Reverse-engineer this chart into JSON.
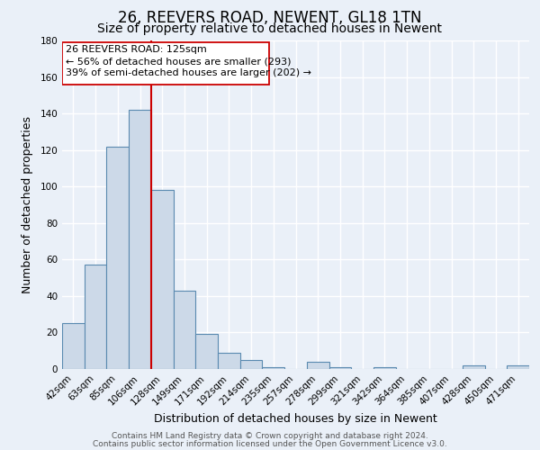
{
  "title": "26, REEVERS ROAD, NEWENT, GL18 1TN",
  "subtitle": "Size of property relative to detached houses in Newent",
  "xlabel": "Distribution of detached houses by size in Newent",
  "ylabel": "Number of detached properties",
  "bin_labels": [
    "42sqm",
    "63sqm",
    "85sqm",
    "106sqm",
    "128sqm",
    "149sqm",
    "171sqm",
    "192sqm",
    "214sqm",
    "235sqm",
    "257sqm",
    "278sqm",
    "299sqm",
    "321sqm",
    "342sqm",
    "364sqm",
    "385sqm",
    "407sqm",
    "428sqm",
    "450sqm",
    "471sqm"
  ],
  "bin_values": [
    25,
    57,
    122,
    142,
    98,
    43,
    19,
    9,
    5,
    1,
    0,
    4,
    1,
    0,
    1,
    0,
    0,
    0,
    2,
    0,
    2
  ],
  "bar_color": "#ccd9e8",
  "bar_edge_color": "#5a8ab0",
  "property_line_idx": 4,
  "property_line_color": "#cc0000",
  "annotation_title": "26 REEVERS ROAD: 125sqm",
  "annotation_line1": "← 56% of detached houses are smaller (293)",
  "annotation_line2": "39% of semi-detached houses are larger (202) →",
  "annotation_box_edge_color": "#cc0000",
  "ylim": [
    0,
    180
  ],
  "yticks": [
    0,
    20,
    40,
    60,
    80,
    100,
    120,
    140,
    160,
    180
  ],
  "footer1": "Contains HM Land Registry data © Crown copyright and database right 2024.",
  "footer2": "Contains public sector information licensed under the Open Government Licence v3.0.",
  "bg_color": "#eaf0f8",
  "plot_bg_color": "#eaf0f8",
  "grid_color": "#ffffff",
  "title_fontsize": 12,
  "subtitle_fontsize": 10,
  "label_fontsize": 9,
  "tick_fontsize": 7.5,
  "footer_fontsize": 6.5
}
